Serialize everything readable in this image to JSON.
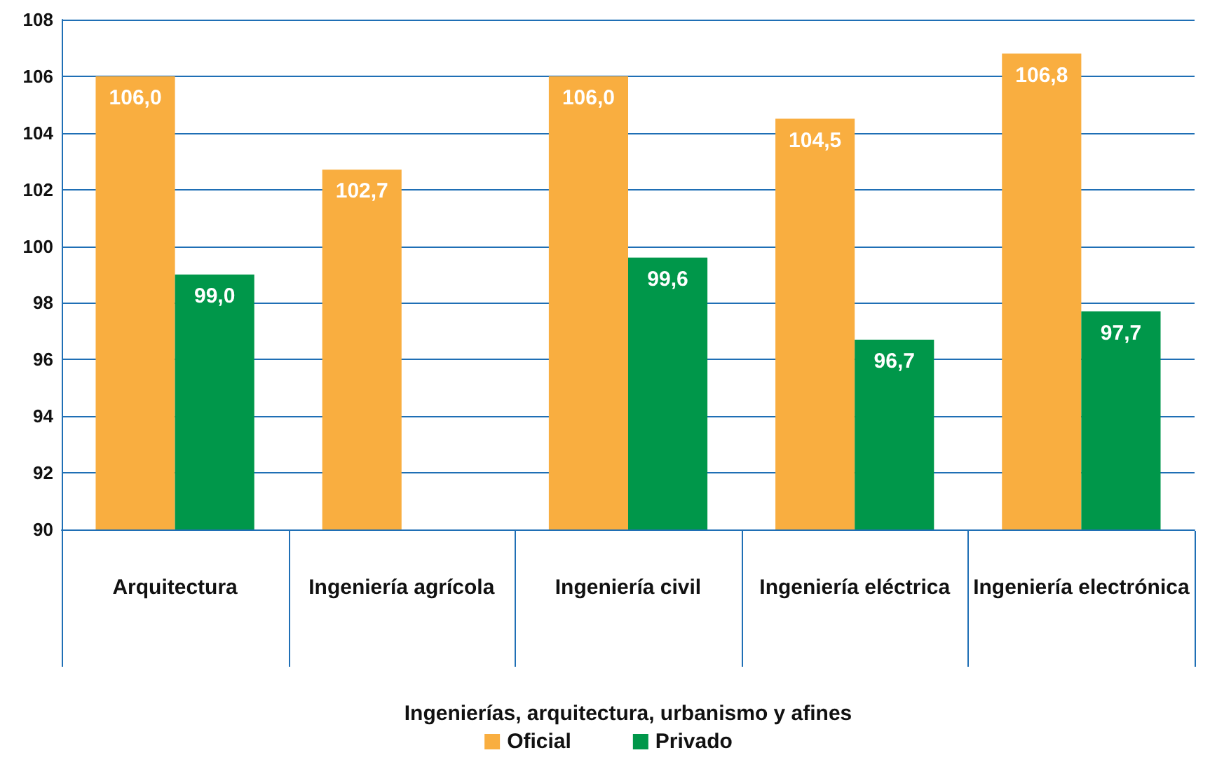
{
  "chart_data": {
    "type": "bar",
    "xlabel": "Ingenierías, arquitectura, urbanismo y afines",
    "categories": [
      "Arquitectura",
      "Ingeniería agrícola",
      "Ingeniería civil",
      "Ingeniería eléctrica",
      "Ingeniería electrónica"
    ],
    "series": [
      {
        "name": "Oficial",
        "color": "#f9ae40",
        "values": [
          106.0,
          102.7,
          106.0,
          104.5,
          106.8
        ],
        "value_labels": [
          "106,0",
          "102,7",
          "106,0",
          "104,5",
          "106,8"
        ]
      },
      {
        "name": "Privado",
        "color": "#00974a",
        "values": [
          99.0,
          null,
          99.6,
          96.7,
          97.7
        ],
        "value_labels": [
          "99,0",
          null,
          "99,6",
          "96,7",
          "97,7"
        ]
      }
    ],
    "ylim": [
      90,
      108
    ],
    "yticks": [
      90,
      92,
      94,
      96,
      98,
      100,
      102,
      104,
      106,
      108
    ],
    "grid": "y",
    "legend": "bottom"
  }
}
